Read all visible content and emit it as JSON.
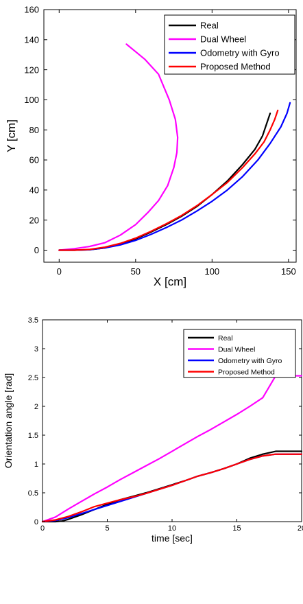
{
  "chart_data": [
    {
      "type": "line",
      "xlabel": "X [cm]",
      "ylabel": "Y [cm]",
      "xlim": [
        -10,
        155
      ],
      "ylim": [
        -8,
        160
      ],
      "xticks": [
        0,
        50,
        100,
        150
      ],
      "yticks": [
        0,
        20,
        40,
        60,
        80,
        100,
        120,
        140,
        160
      ],
      "grid": false,
      "legend_position": "top-right",
      "series": [
        {
          "name": "Real",
          "color": "#000000",
          "x": [
            0,
            10,
            20,
            30,
            40,
            50,
            60,
            70,
            80,
            90,
            100,
            110,
            120,
            128,
            133,
            136,
            138
          ],
          "y": [
            0,
            0,
            0.3,
            1.5,
            4,
            7.5,
            12,
            17,
            22.5,
            29,
            37,
            46,
            57,
            67,
            76,
            85,
            91
          ]
        },
        {
          "name": "Dual Wheel",
          "color": "#ff00ff",
          "x": [
            0,
            10,
            20,
            30,
            40,
            50,
            58,
            65,
            71,
            75,
            77,
            77.5,
            76,
            72,
            65,
            56,
            50,
            44
          ],
          "y": [
            0,
            1,
            2.5,
            5,
            10,
            17,
            25,
            33,
            43,
            55,
            65,
            75,
            87,
            100,
            117,
            127,
            132,
            137
          ]
        },
        {
          "name": "Odometry with Gyro",
          "color": "#0000ff",
          "x": [
            0,
            10,
            20,
            30,
            40,
            50,
            60,
            70,
            80,
            90,
            100,
            110,
            120,
            130,
            138,
            145,
            149,
            151
          ],
          "y": [
            0,
            0,
            0.3,
            1.5,
            3.5,
            6.5,
            10.5,
            15,
            20,
            26,
            32.5,
            40,
            49,
            60,
            71,
            82,
            91,
            98
          ]
        },
        {
          "name": "Proposed Method",
          "color": "#ff0000",
          "x": [
            0,
            10,
            20,
            30,
            40,
            50,
            60,
            70,
            80,
            90,
            100,
            110,
            120,
            128,
            134,
            138,
            141,
            143
          ],
          "y": [
            0,
            0,
            0.5,
            2,
            4.5,
            8,
            12.5,
            17.5,
            23,
            29.5,
            37,
            45,
            55,
            64,
            72,
            80,
            87,
            93
          ]
        }
      ]
    },
    {
      "type": "line",
      "xlabel": "time [sec]",
      "ylabel": "Orientation angle [rad]",
      "xlim": [
        0,
        20
      ],
      "ylim": [
        0,
        3.5
      ],
      "xticks": [
        0,
        5,
        10,
        15,
        20
      ],
      "yticks": [
        0,
        0.5,
        1,
        1.5,
        2,
        2.5,
        3,
        3.5
      ],
      "grid": false,
      "legend_position": "top-right",
      "series": [
        {
          "name": "Real",
          "color": "#000000",
          "x": [
            0,
            1,
            1.5,
            2,
            3,
            4,
            5,
            6,
            7,
            8,
            9,
            10,
            11,
            12,
            13,
            14,
            15,
            16,
            17,
            18,
            19,
            20
          ],
          "y": [
            0,
            0,
            0.01,
            0.04,
            0.12,
            0.21,
            0.3,
            0.38,
            0.44,
            0.5,
            0.57,
            0.64,
            0.71,
            0.79,
            0.85,
            0.92,
            1.0,
            1.1,
            1.17,
            1.22,
            1.22,
            1.22
          ]
        },
        {
          "name": "Dual Wheel",
          "color": "#ff00ff",
          "x": [
            0,
            1,
            2,
            3,
            4,
            5,
            6,
            7,
            8,
            9,
            10,
            11,
            12,
            13,
            14,
            15,
            16,
            17,
            18,
            19,
            20
          ],
          "y": [
            0,
            0.08,
            0.22,
            0.35,
            0.48,
            0.6,
            0.73,
            0.85,
            0.97,
            1.09,
            1.22,
            1.35,
            1.48,
            1.6,
            1.73,
            1.86,
            2.0,
            2.15,
            2.53,
            2.53,
            2.53
          ]
        },
        {
          "name": "Odometry with Gyro",
          "color": "#0000ff",
          "x": [
            0,
            1,
            2,
            3,
            4,
            5,
            6,
            7,
            8,
            9,
            10,
            11,
            12,
            13,
            14,
            15,
            16,
            17,
            18,
            19,
            20
          ],
          "y": [
            0,
            0.02,
            0.07,
            0.14,
            0.21,
            0.28,
            0.35,
            0.42,
            0.49,
            0.56,
            0.63,
            0.71,
            0.79,
            0.85,
            0.92,
            1.0,
            1.08,
            1.14,
            1.17,
            1.17,
            1.17
          ]
        },
        {
          "name": "Proposed Method",
          "color": "#ff0000",
          "x": [
            0,
            1,
            2,
            3,
            4,
            5,
            6,
            7,
            8,
            9,
            10,
            11,
            12,
            13,
            14,
            15,
            16,
            17,
            18,
            19,
            20
          ],
          "y": [
            0,
            0.03,
            0.09,
            0.17,
            0.26,
            0.32,
            0.38,
            0.43,
            0.49,
            0.56,
            0.63,
            0.71,
            0.79,
            0.85,
            0.92,
            1.0,
            1.08,
            1.14,
            1.17,
            1.17,
            1.17
          ]
        }
      ]
    }
  ]
}
